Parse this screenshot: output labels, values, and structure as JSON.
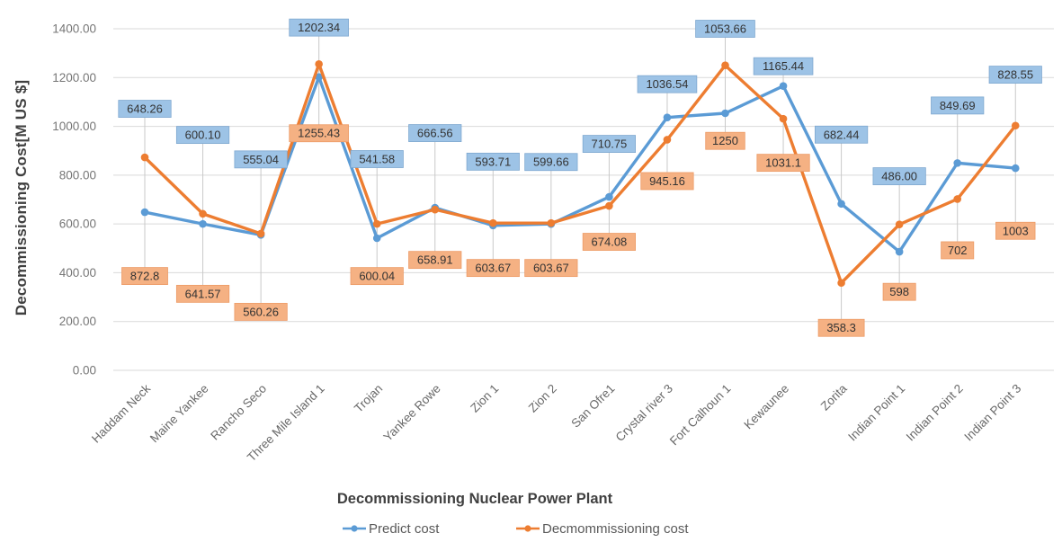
{
  "chart_data": {
    "type": "line",
    "title": "Decommissioning Nuclear Power Plant",
    "ylabel": "Decommissioning Cost[M US $]",
    "ylim": [
      0,
      1400
    ],
    "yticks": [
      "0.00",
      "200.00",
      "400.00",
      "600.00",
      "800.00",
      "1000.00",
      "1200.00",
      "1400.00"
    ],
    "ytick_values": [
      0,
      200,
      400,
      600,
      800,
      1000,
      1200,
      1400
    ],
    "grid": "horizontal",
    "legend_position": "bottom",
    "categories": [
      "Haddam Neck",
      "Maine Yankee",
      "Rancho Seco",
      "Three Mile Island 1",
      "Trojan",
      "Yankee Rowe",
      "Zion 1",
      "Zion 2",
      "San Ofre1",
      "Crystal river 3",
      "Fort Calhoun 1",
      "Kewaunee",
      "Zorita",
      "Indian Point 1",
      "Indian Point 2",
      "Indian Point 3"
    ],
    "series": [
      {
        "name": "Predict cost",
        "color": "#5B9BD5",
        "label_fill": "#9DC3E6",
        "label_border": "#7FA8D0",
        "values": [
          648.26,
          600.1,
          555.04,
          1202.34,
          541.58,
          666.56,
          593.71,
          599.66,
          710.75,
          1036.54,
          1053.66,
          1165.44,
          682.44,
          486.0,
          849.69,
          828.55
        ],
        "labels": [
          "648.26",
          "600.10",
          "555.04",
          "1202.34",
          "541.58",
          "666.56",
          "593.71",
          "599.66",
          "710.75",
          "1036.54",
          "1053.66",
          "1165.44",
          "682.44",
          "486.00",
          "849.69",
          "828.55"
        ],
        "label_dy": [
          -115,
          -99,
          -84,
          -55,
          -88,
          -83,
          -71,
          -69,
          -59,
          -37,
          -94,
          -22,
          -77,
          -84,
          -64,
          -104
        ]
      },
      {
        "name": "Decmommissioning cost",
        "color": "#ED7D31",
        "label_fill": "#F5B183",
        "label_border": "#ED9B66",
        "values": [
          872.8,
          641.57,
          560.26,
          1255.43,
          600.04,
          658.91,
          603.67,
          603.67,
          674.08,
          945.16,
          1250,
          1031.1,
          358.3,
          598,
          702,
          1003
        ],
        "labels": [
          "872.8",
          "641.57",
          "560.26",
          "1255.43",
          "600.04",
          "658.91",
          "603.67",
          "603.67",
          "674.08",
          "945.16",
          "1250",
          "1031.1",
          "358.3",
          "598",
          "702",
          "1003"
        ],
        "label_dy": [
          132,
          89,
          87,
          77,
          58,
          56,
          50,
          50,
          40,
          46,
          84,
          49,
          50,
          75,
          57,
          117
        ]
      }
    ],
    "colors": {
      "gridline": "#D9D9D9",
      "leader_line": "#C9C9C9",
      "tick_text": "#767676",
      "category_text": "#696969",
      "axis_title_text": "#404040",
      "legend_text": "#595959",
      "label_text": "#333333"
    }
  }
}
